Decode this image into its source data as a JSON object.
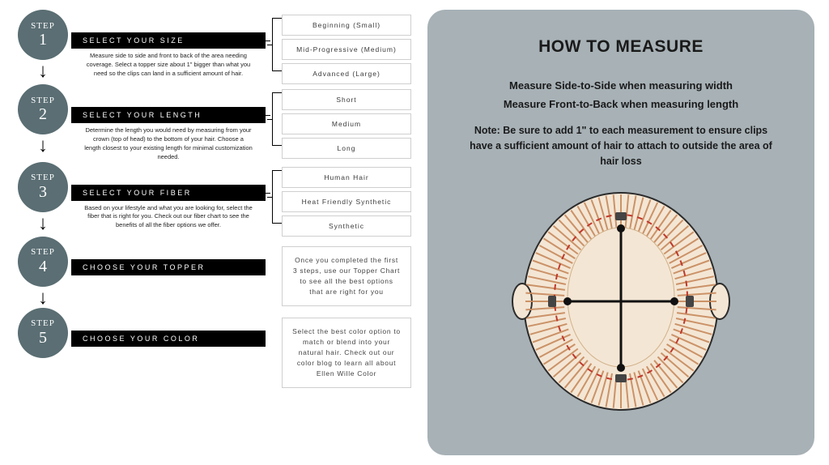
{
  "colors": {
    "step_circle": "#5a6e73",
    "title_bar_bg": "#000000",
    "title_bar_fg": "#ffffff",
    "option_border": "#cfcfcf",
    "right_panel_bg": "#a7b1b6",
    "text_dark": "#1a1a1a",
    "hair_stroke": "#c78a5d",
    "skin_fill": "#f4e6d4",
    "measure_line": "#111111",
    "dashed_ring": "#c0392b"
  },
  "steps": [
    {
      "num": "1",
      "title": "SELECT YOUR SIZE",
      "desc": "Measure side to side and front to back of the area needing coverage.\nSelect a topper size about 1\" bigger than what you need so the clips can land in a sufficient amount of hair.",
      "options": [
        "Beginning  (Small)",
        "Mid-Progressive  (Medium)",
        "Advanced  (Large)"
      ]
    },
    {
      "num": "2",
      "title": "SELECT YOUR LENGTH",
      "desc": "Determine the length you would need by measuring from your crown (top of head) to the bottom of your hair.\nChoose a length closest to your existing length for minimal customization needed.",
      "options": [
        "Short",
        "Medium",
        "Long"
      ]
    },
    {
      "num": "3",
      "title": "SELECT YOUR FIBER",
      "desc": "Based on your lifestyle and what you are looking for, select the fiber that is right for you.\nCheck out our fiber chart to see the benefits of all the fiber options we offer.",
      "options": [
        "Human Hair",
        "Heat Friendly Synthetic",
        "Synthetic"
      ]
    },
    {
      "num": "4",
      "title": "CHOOSE YOUR TOPPER",
      "info": "Once you completed the first 3 steps, use our Topper Chart to see all the best options that are right for you"
    },
    {
      "num": "5",
      "title": "CHOOSE YOUR COLOR",
      "info": "Select the best color option to match or blend into your natural hair.\nCheck out our color blog to learn all about Ellen Wille Color"
    }
  ],
  "right": {
    "heading": "HOW TO MEASURE",
    "line1": "Measure Side-to-Side when measuring width",
    "line2": "Measure Front-to-Back when measuring length",
    "note": "Note: Be sure to add 1\" to each measurement to ensure clips have a sufficient amount of hair to attach to  outside the area of hair loss"
  }
}
